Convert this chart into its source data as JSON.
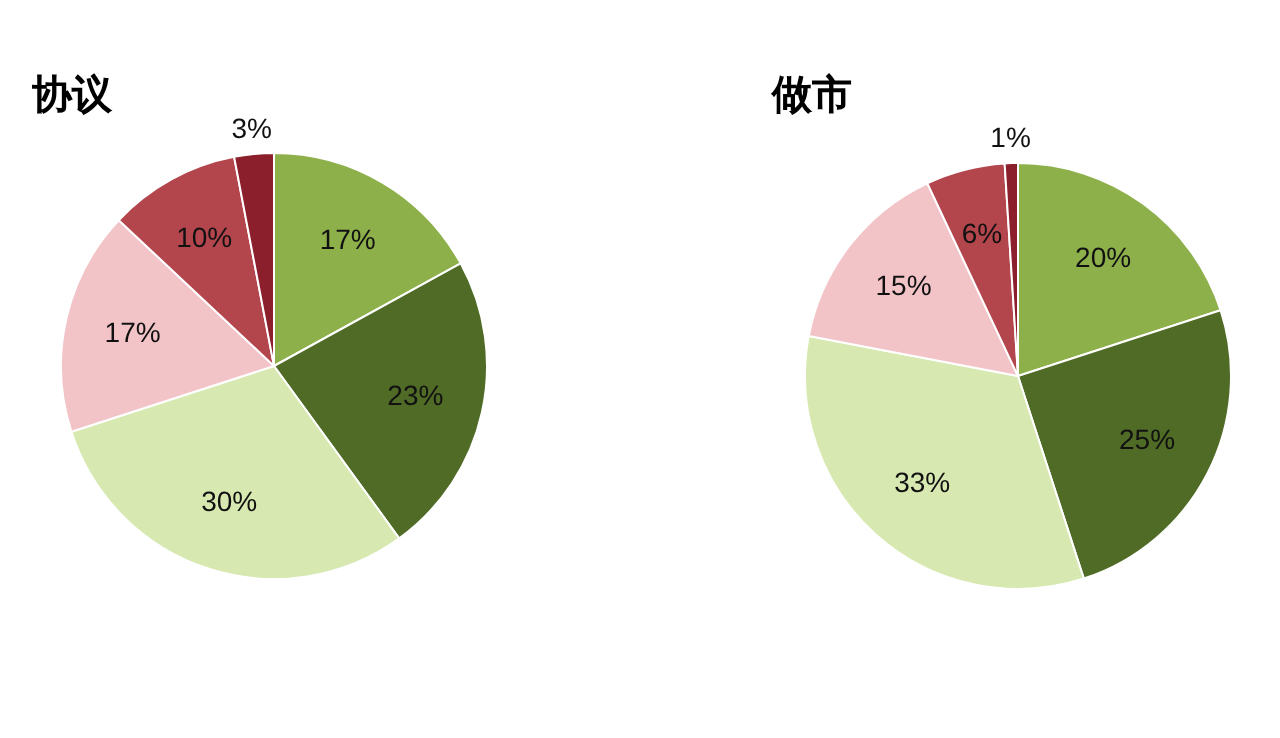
{
  "chart_data": [
    {
      "type": "pie",
      "title": "协议",
      "categories": [
        null,
        null,
        null,
        null,
        null,
        null
      ],
      "values": [
        17,
        23,
        30,
        17,
        10,
        3
      ],
      "colors": [
        "#8db04a",
        "#4f6b26",
        "#d7e8b0",
        "#f2c4c8",
        "#b3454d",
        "#8b1f2c"
      ],
      "value_labels": [
        "17%",
        "23%",
        "30%",
        "17%",
        "10%",
        "3%"
      ],
      "legend": false
    },
    {
      "type": "pie",
      "title": "做市",
      "categories": [
        null,
        null,
        null,
        null,
        null,
        null
      ],
      "values": [
        20,
        25,
        33,
        15,
        6,
        1
      ],
      "colors": [
        "#8db04a",
        "#4f6b26",
        "#d7e8b0",
        "#f2c4c8",
        "#b3454d",
        "#8b1f2c"
      ],
      "value_labels": [
        "20%",
        "25%",
        "33%",
        "15%",
        "6%",
        "1%"
      ],
      "legend": false
    }
  ]
}
